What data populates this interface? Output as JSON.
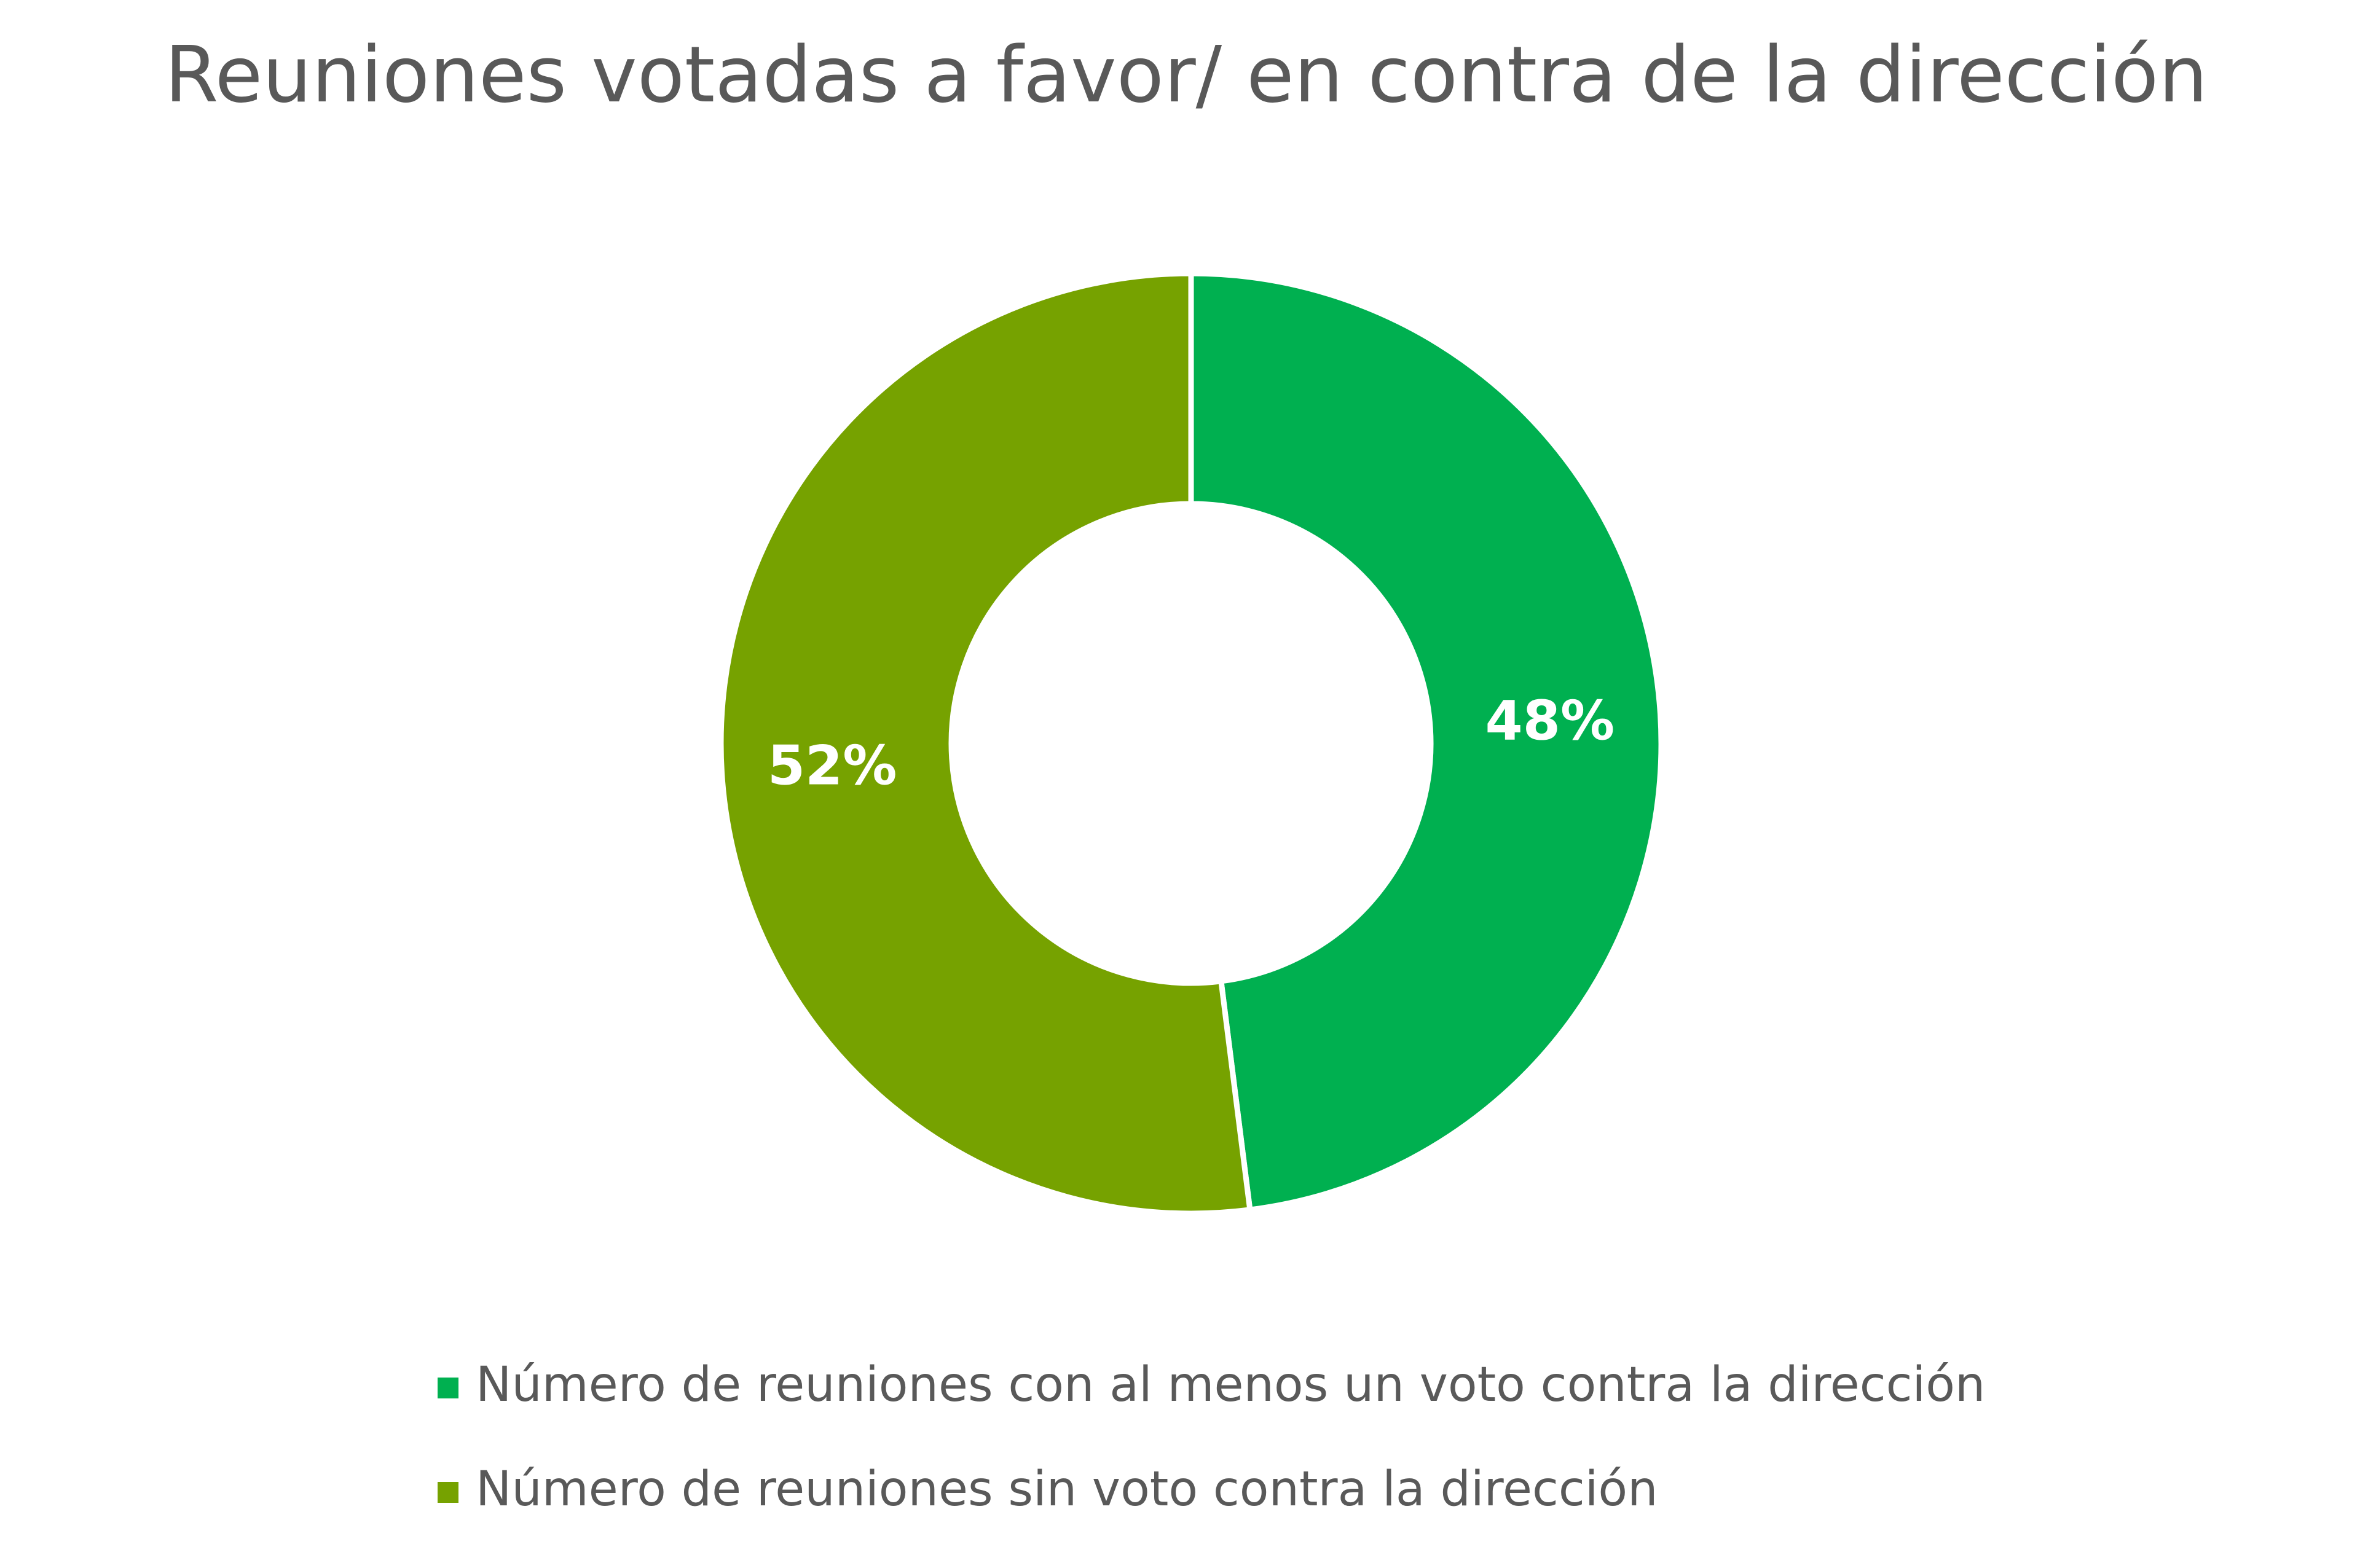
{
  "chart_data": {
    "type": "pie",
    "variant": "donut",
    "title": "Reuniones votadas a favor/ en contra de la dirección",
    "series": [
      {
        "name": "Número de reuniones con al menos un voto contra la dirección",
        "value": 48,
        "label": "48%",
        "color": "#00b050"
      },
      {
        "name": "Número de reuniones sin voto contra la dirección",
        "value": 52,
        "label": "52%",
        "color": "#76a200"
      }
    ],
    "legend_position": "bottom"
  }
}
